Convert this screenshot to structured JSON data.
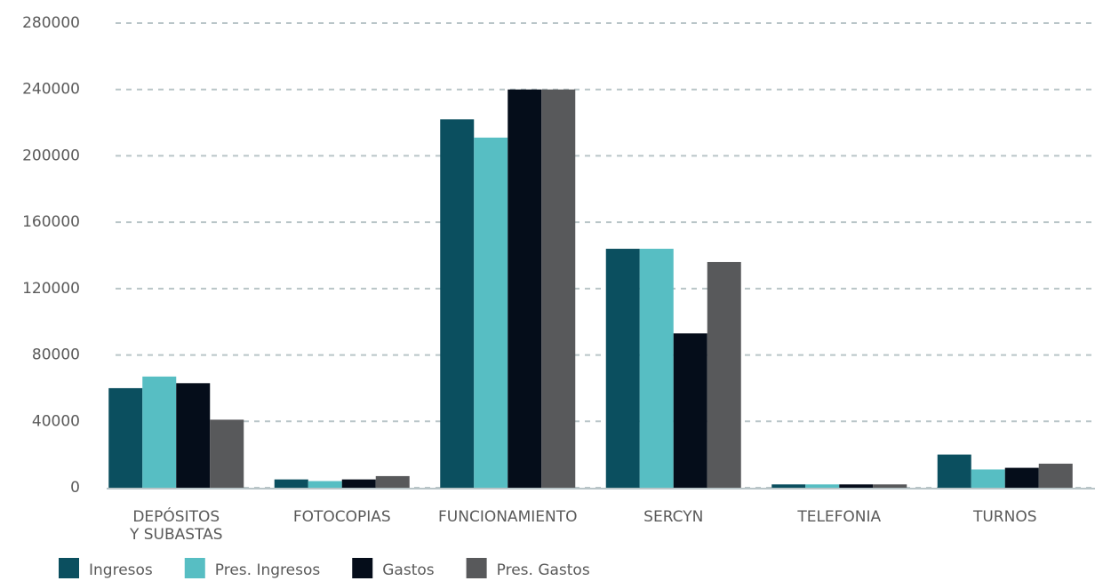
{
  "chart_data": {
    "type": "bar",
    "categories": [
      "DEPÓSITOS\nY SUBASTAS",
      "FOTOCOPIAS",
      "FUNCIONAMIENTO",
      "SERCYN",
      "TELEFONIA",
      "TURNOS"
    ],
    "series": [
      {
        "name": "Ingresos",
        "color": "#0b4f5f",
        "values": [
          60000,
          5000,
          222000,
          144000,
          2000,
          20000
        ]
      },
      {
        "name": "Pres. Ingresos",
        "color": "#57bec3",
        "values": [
          67000,
          4000,
          211000,
          144000,
          2000,
          11000
        ]
      },
      {
        "name": "Gastos",
        "color": "#050d1a",
        "values": [
          63000,
          5000,
          240000,
          93000,
          2000,
          12000
        ]
      },
      {
        "name": "Pres. Gastos",
        "color": "#58595b",
        "values": [
          41000,
          7000,
          240000,
          136000,
          2000,
          14500
        ]
      }
    ],
    "ylim": [
      0,
      280000
    ],
    "yticks": [
      0,
      40000,
      80000,
      120000,
      160000,
      200000,
      240000,
      280000
    ],
    "grid": true,
    "legend": "bottom-left"
  }
}
